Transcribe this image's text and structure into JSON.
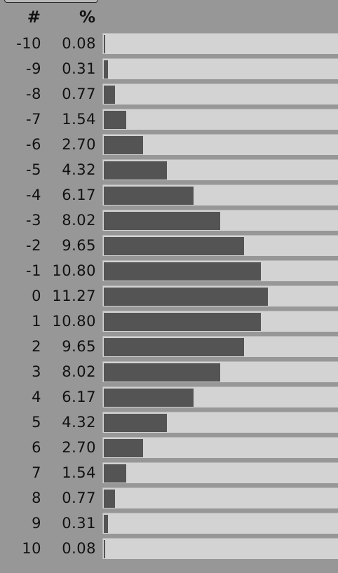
{
  "chart_data": {
    "type": "bar",
    "orientation": "horizontal",
    "headers": {
      "index": "#",
      "percent": "%"
    },
    "categories": [
      "-10",
      "-9",
      "-8",
      "-7",
      "-6",
      "-5",
      "-4",
      "-3",
      "-2",
      "-1",
      "0",
      "1",
      "2",
      "3",
      "4",
      "5",
      "6",
      "7",
      "8",
      "9",
      "10"
    ],
    "value_labels": [
      "0.08",
      "0.31",
      "0.77",
      "1.54",
      "2.70",
      "4.32",
      "6.17",
      "8.02",
      "9.65",
      "10.80",
      "11.27",
      "10.80",
      "9.65",
      "8.02",
      "6.17",
      "4.32",
      "2.70",
      "1.54",
      "0.77",
      "0.31",
      "0.08"
    ],
    "values": [
      0.08,
      0.31,
      0.77,
      1.54,
      2.7,
      4.32,
      6.17,
      8.02,
      9.65,
      10.8,
      11.27,
      10.8,
      9.65,
      8.02,
      6.17,
      4.32,
      2.7,
      1.54,
      0.77,
      0.31,
      0.08
    ],
    "xlim": [
      0,
      16.1
    ],
    "colors": {
      "bar": "#545454",
      "track": "#d3d3d3",
      "background": "#979797"
    }
  }
}
